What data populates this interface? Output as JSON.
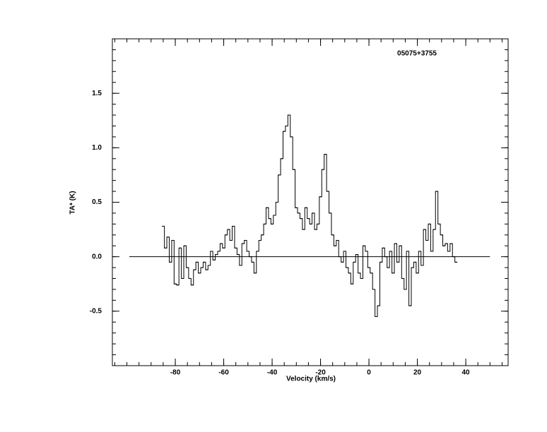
{
  "chart_data": {
    "type": "step",
    "title": "05075+3755",
    "xlabel": "Velocity (km/s)",
    "ylabel": "TA* (K)",
    "xlim": [
      -106,
      57.5
    ],
    "ylim": [
      -1,
      2
    ],
    "xticks": [
      -80,
      -60,
      -40,
      -20,
      0,
      20,
      40
    ],
    "yticks": [
      -0.5,
      {
        "value": 0,
        "label": "0.0"
      },
      0.5,
      {
        "value": 1,
        "label": "1.0"
      },
      1.5
    ],
    "zero_line_x": [
      -99,
      50
    ],
    "color": "#000000",
    "x": [
      -85,
      -84,
      -83,
      -82,
      -81,
      -80,
      -79,
      -78,
      -77,
      -76,
      -75,
      -74,
      -73,
      -72,
      -71,
      -70,
      -69,
      -68,
      -67,
      -66,
      -65,
      -64,
      -63,
      -62,
      -61,
      -60,
      -59,
      -58,
      -57,
      -56,
      -55,
      -54,
      -53,
      -52,
      -51,
      -50,
      -49,
      -48,
      -47,
      -46,
      -45,
      -44,
      -43,
      -42,
      -41,
      -40,
      -39,
      -38,
      -37,
      -36,
      -35,
      -34,
      -33,
      -32,
      -31,
      -30,
      -29,
      -28,
      -27,
      -26,
      -25,
      -24,
      -23,
      -22,
      -21,
      -20,
      -19,
      -18,
      -17,
      -16,
      -15,
      -14,
      -13,
      -12,
      -11,
      -10,
      -9,
      -8,
      -7,
      -6,
      -5,
      -4,
      -3,
      -2,
      -1,
      0,
      1,
      2,
      3,
      4,
      5,
      6,
      7,
      8,
      9,
      10,
      11,
      12,
      13,
      14,
      15,
      16,
      17,
      18,
      19,
      20,
      21,
      22,
      23,
      24,
      25,
      26,
      27,
      28,
      29,
      30,
      31,
      32,
      33,
      34,
      35,
      36
    ],
    "values": [
      0.28,
      0.08,
      0.18,
      -0.05,
      0.15,
      -0.25,
      -0.26,
      0.08,
      -0.2,
      0.1,
      -0.1,
      -0.2,
      -0.26,
      -0.12,
      -0.05,
      -0.15,
      -0.1,
      -0.05,
      -0.12,
      -0.08,
      0.05,
      -0.03,
      0.02,
      0.05,
      0.12,
      0.08,
      0.2,
      0.25,
      0.15,
      0.28,
      0.08,
      0.02,
      -0.08,
      0.12,
      0.15,
      0.05,
      0,
      -0.05,
      -0.15,
      0.05,
      0.15,
      0.2,
      0.3,
      0.45,
      0.35,
      0.3,
      0.38,
      0.5,
      0.75,
      0.9,
      1.15,
      1.2,
      1.3,
      1.1,
      0.8,
      0.45,
      0.4,
      0.35,
      0.25,
      0.45,
      0.35,
      0.3,
      0.4,
      0.25,
      0.3,
      0.55,
      0.8,
      0.94,
      0.6,
      0.4,
      0.2,
      0.1,
      0.15,
      0,
      -0.05,
      0.05,
      -0.1,
      -0.15,
      -0.25,
      -0.05,
      0.02,
      -0.15,
      -0.2,
      0.1,
      0.05,
      -0.1,
      -0.15,
      -0.3,
      -0.55,
      -0.45,
      -0.05,
      0.08,
      0,
      -0.1,
      0.05,
      -0.15,
      0.12,
      -0.05,
      0.1,
      -0.2,
      -0.3,
      0.05,
      -0.45,
      -0.1,
      -0.05,
      -0.15,
      0.05,
      -0.08,
      0.25,
      0.15,
      0.3,
      0.05,
      0.25,
      0.6,
      0.3,
      0.2,
      0.1,
      0.12,
      0.05,
      0.12,
      0,
      -0.05
    ]
  }
}
